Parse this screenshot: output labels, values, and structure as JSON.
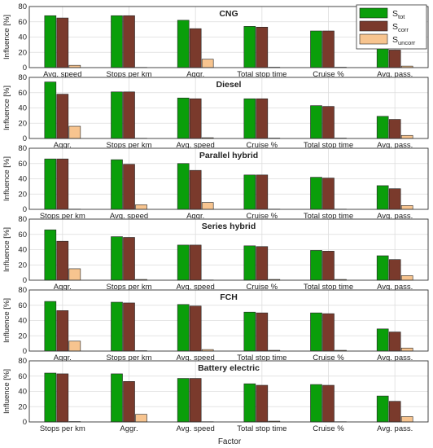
{
  "figure": {
    "xlabel": "Factor",
    "ylabel": "Influence [%]",
    "legend": {
      "placement": "top-right-of-first-panel",
      "items": [
        {
          "key": "tot",
          "base": "S",
          "sub": "tot",
          "color": "#0a9e0a"
        },
        {
          "key": "corr",
          "base": "S",
          "sub": "corr",
          "color": "#7a3a2c"
        },
        {
          "key": "uncorr",
          "base": "S",
          "sub": "uncorr",
          "color": "#f7c48f"
        }
      ]
    }
  },
  "chart_data": [
    {
      "type": "bar",
      "title": "CNG",
      "ylabel": "Influence [%]",
      "ylim": [
        0,
        80
      ],
      "yticks": [
        0,
        20,
        40,
        60,
        80
      ],
      "grid": true,
      "categories": [
        "Avg. speed",
        "Stops per km",
        "Aggr.",
        "Total stop time",
        "Cruise %",
        "Avg. pass."
      ],
      "series": [
        {
          "name": "S_tot",
          "values": [
            68,
            68,
            62,
            54,
            48,
            26
          ]
        },
        {
          "name": "S_corr",
          "values": [
            65,
            68,
            51,
            53,
            48,
            23
          ]
        },
        {
          "name": "S_uncorr",
          "values": [
            3,
            0,
            11,
            0.5,
            0.5,
            2
          ]
        }
      ]
    },
    {
      "type": "bar",
      "title": "Diesel",
      "ylabel": "Influence [%]",
      "ylim": [
        0,
        80
      ],
      "yticks": [
        0,
        20,
        40,
        60,
        80
      ],
      "grid": true,
      "categories": [
        "Aggr.",
        "Stops per km",
        "Avg. speed",
        "Cruise %",
        "Total stop time",
        "Avg. pass."
      ],
      "series": [
        {
          "name": "S_tot",
          "values": [
            74,
            61,
            53,
            52,
            43,
            29
          ]
        },
        {
          "name": "S_corr",
          "values": [
            58,
            61,
            52,
            52,
            42,
            25
          ]
        },
        {
          "name": "S_uncorr",
          "values": [
            16,
            0,
            1,
            0.5,
            0.5,
            4
          ]
        }
      ]
    },
    {
      "type": "bar",
      "title": "Parallel hybrid",
      "ylabel": "Influence [%]",
      "ylim": [
        0,
        80
      ],
      "yticks": [
        0,
        20,
        40,
        60,
        80
      ],
      "grid": true,
      "categories": [
        "Stops per km",
        "Avg. speed",
        "Aggr.",
        "Cruise %",
        "Total stop time",
        "Avg. pass."
      ],
      "series": [
        {
          "name": "S_tot",
          "values": [
            66,
            65,
            60,
            45,
            42,
            31
          ]
        },
        {
          "name": "S_corr",
          "values": [
            66,
            59,
            51,
            45,
            41,
            27
          ]
        },
        {
          "name": "S_uncorr",
          "values": [
            0,
            6,
            9,
            0,
            0,
            5
          ]
        }
      ]
    },
    {
      "type": "bar",
      "title": "Series hybrid",
      "ylabel": "Influence [%]",
      "ylim": [
        0,
        80
      ],
      "yticks": [
        0,
        20,
        40,
        60,
        80
      ],
      "grid": true,
      "categories": [
        "Aggr.",
        "Stops per km",
        "Avg. speed",
        "Cruise %",
        "Total stop time",
        "Avg. pass."
      ],
      "series": [
        {
          "name": "S_tot",
          "values": [
            66,
            57,
            46,
            45,
            39,
            32
          ]
        },
        {
          "name": "S_corr",
          "values": [
            51,
            56,
            46,
            44,
            38,
            27
          ]
        },
        {
          "name": "S_uncorr",
          "values": [
            15,
            1,
            0,
            1,
            1,
            6
          ]
        }
      ]
    },
    {
      "type": "bar",
      "title": "FCH",
      "ylabel": "Influence [%]",
      "ylim": [
        0,
        80
      ],
      "yticks": [
        0,
        20,
        40,
        60,
        80
      ],
      "grid": true,
      "categories": [
        "Aggr.",
        "Stops per km",
        "Avg. speed",
        "Total stop time",
        "Cruise %",
        "Avg. pass."
      ],
      "series": [
        {
          "name": "S_tot",
          "values": [
            65,
            64,
            61,
            51,
            50,
            29
          ]
        },
        {
          "name": "S_corr",
          "values": [
            53,
            63,
            59,
            50,
            49,
            25
          ]
        },
        {
          "name": "S_uncorr",
          "values": [
            13,
            0.5,
            2,
            1,
            1,
            4
          ]
        }
      ]
    },
    {
      "type": "bar",
      "title": "Battery electric",
      "ylabel": "Influence [%]",
      "ylim": [
        0,
        80
      ],
      "yticks": [
        0,
        20,
        40,
        60,
        80
      ],
      "grid": true,
      "categories": [
        "Stops per km",
        "Aggr.",
        "Avg. speed",
        "Total stop time",
        "Cruise %",
        "Avg. pass."
      ],
      "series": [
        {
          "name": "S_tot",
          "values": [
            64,
            63,
            57,
            50,
            49,
            34
          ]
        },
        {
          "name": "S_corr",
          "values": [
            63,
            53,
            57,
            48,
            48,
            27
          ]
        },
        {
          "name": "S_uncorr",
          "values": [
            0.5,
            10,
            0,
            1,
            0,
            7
          ]
        }
      ]
    }
  ]
}
